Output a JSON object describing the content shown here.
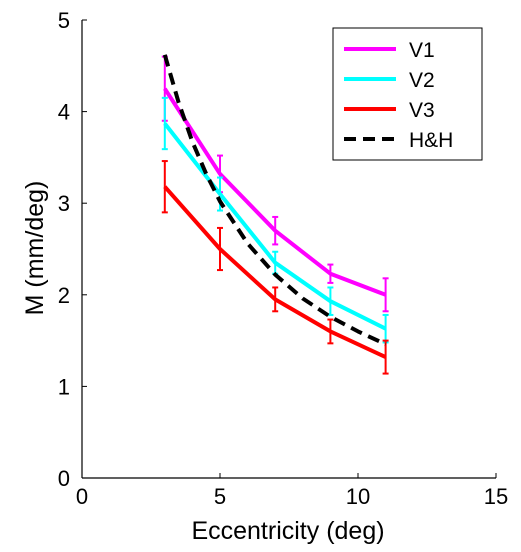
{
  "chart_data": {
    "type": "line",
    "title": "",
    "xlabel": "Eccentricity (deg)",
    "ylabel": "M (mm/deg)",
    "xlim": [
      0,
      15
    ],
    "ylim": [
      0,
      5
    ],
    "x_ticks": [
      0,
      5,
      10,
      15
    ],
    "y_ticks": [
      0,
      1,
      2,
      3,
      4,
      5
    ],
    "x_tick_labels": [
      "0",
      "5",
      "10",
      "15"
    ],
    "y_tick_labels": [
      "0",
      "1",
      "2",
      "3",
      "4",
      "5"
    ],
    "grid": false,
    "legend_position": "top-right",
    "series": [
      {
        "name": "V1",
        "color": "#ff00ff",
        "line_style": "solid",
        "x": [
          3,
          5,
          7,
          9,
          11
        ],
        "y": [
          4.25,
          3.32,
          2.7,
          2.23,
          2.0
        ],
        "error": [
          0.35,
          0.2,
          0.15,
          0.1,
          0.18
        ]
      },
      {
        "name": "V2",
        "color": "#00ffff",
        "line_style": "solid",
        "x": [
          3,
          5,
          7,
          9,
          11
        ],
        "y": [
          3.87,
          3.1,
          2.35,
          1.93,
          1.63
        ],
        "error": [
          0.28,
          0.18,
          0.12,
          0.15,
          0.15
        ]
      },
      {
        "name": "V3",
        "color": "#ff0000",
        "line_style": "solid",
        "x": [
          3,
          5,
          7,
          9,
          11
        ],
        "y": [
          3.18,
          2.5,
          1.95,
          1.6,
          1.32
        ],
        "error": [
          0.28,
          0.23,
          0.13,
          0.13,
          0.18
        ]
      },
      {
        "name": "H&H",
        "color": "#000000",
        "line_style": "dashed",
        "x": [
          3,
          3.5,
          4,
          4.5,
          5,
          6,
          7,
          8,
          9,
          10,
          11
        ],
        "y": [
          4.62,
          4.1,
          3.67,
          3.32,
          3.02,
          2.56,
          2.22,
          1.96,
          1.76,
          1.6,
          1.46
        ],
        "error": []
      }
    ]
  }
}
